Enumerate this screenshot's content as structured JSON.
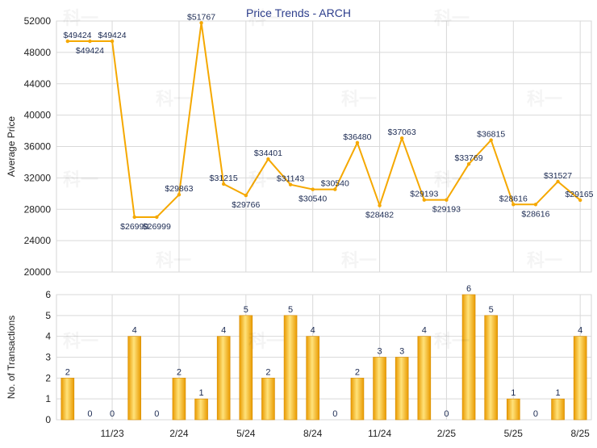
{
  "chart_data": [
    {
      "type": "line",
      "title": "Price Trends - ARCH",
      "xlabel": "",
      "ylabel": "Average Price",
      "ylim": [
        20000,
        52000
      ],
      "yticks": [
        20000,
        24000,
        28000,
        32000,
        36000,
        40000,
        44000,
        48000,
        52000
      ],
      "grid": true,
      "series": [
        {
          "values": [
            49424,
            49424,
            49424,
            26999,
            26999,
            29863,
            51767,
            31215,
            29766,
            34401,
            31143,
            30540,
            30540,
            36480,
            28482,
            37063,
            29193,
            29193,
            33769,
            36815,
            28616,
            28616,
            31527,
            29165
          ],
          "labels": [
            "$49424",
            "$49424",
            "$49424",
            "$26999",
            "$26999",
            "$29863",
            "$51767",
            "$31215",
            "$29766",
            "$34401",
            "$31143",
            "$30540",
            "$30540",
            "$36480",
            "$28482",
            "$37063",
            "$29193",
            "$29193",
            "$33769",
            "$36815",
            "$28616",
            "$28616",
            "$31527",
            "$29165"
          ],
          "color": "#f5a800"
        }
      ]
    },
    {
      "type": "bar",
      "title": "",
      "xlabel": "",
      "ylabel": "No. of Transactions",
      "ylim": [
        0,
        6
      ],
      "yticks": [
        0,
        1,
        2,
        3,
        4,
        5,
        6
      ],
      "grid": true,
      "values": [
        2,
        0,
        0,
        4,
        0,
        2,
        1,
        4,
        5,
        2,
        5,
        4,
        0,
        2,
        3,
        3,
        4,
        0,
        6,
        5,
        1,
        0,
        1,
        4
      ],
      "x_tick_labels": [
        {
          "index": 2,
          "label": "11/23"
        },
        {
          "index": 5,
          "label": "2/24"
        },
        {
          "index": 8,
          "label": "5/24"
        },
        {
          "index": 11,
          "label": "8/24"
        },
        {
          "index": 14,
          "label": "11/24"
        },
        {
          "index": 17,
          "label": "2/25"
        },
        {
          "index": 20,
          "label": "5/25"
        },
        {
          "index": 23,
          "label": "8/25"
        }
      ],
      "color": "#f5b400"
    }
  ],
  "watermark": "科一"
}
